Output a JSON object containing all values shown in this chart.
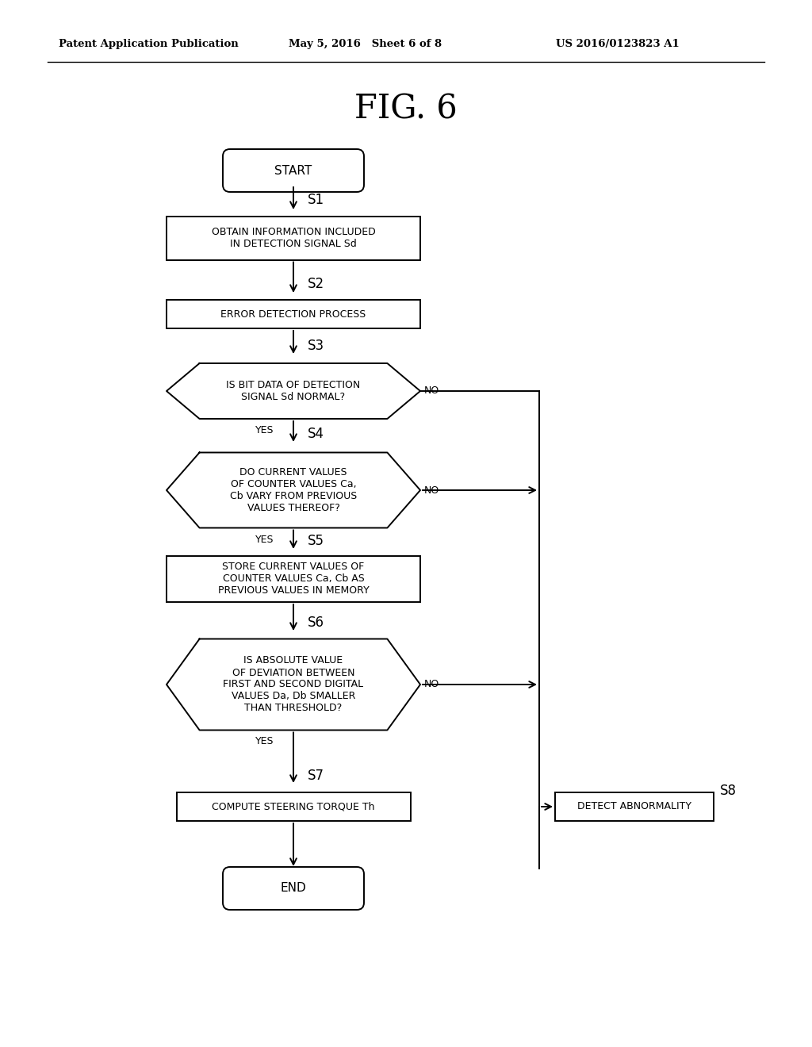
{
  "bg_color": "#ffffff",
  "header_left": "Patent Application Publication",
  "header_mid": "May 5, 2016   Sheet 6 of 8",
  "header_right": "US 2016/0123823 A1",
  "fig_title": "FIG. 6",
  "lw": 1.4,
  "start_text": "START",
  "end_text": "END",
  "s1_text": "OBTAIN INFORMATION INCLUDED\nIN DETECTION SIGNAL Sd",
  "s2_text": "ERROR DETECTION PROCESS",
  "s3_text": "IS BIT DATA OF DETECTION\nSIGNAL Sd NORMAL?",
  "s4_text": "DO CURRENT VALUES\nOF COUNTER VALUES Ca,\nCb VARY FROM PREVIOUS\nVALUES THEREOF?",
  "s5_text": "STORE CURRENT VALUES OF\nCOUNTER VALUES Ca, Cb AS\nPREVIOUS VALUES IN MEMORY",
  "s6_text": "IS ABSOLUTE VALUE\nOF DEVIATION BETWEEN\nFIRST AND SECOND DIGITAL\nVALUES Da, Db SMALLER\nTHAN THRESHOLD?",
  "s7_text": "COMPUTE STEERING TORQUE Th",
  "s8_text": "DETECT ABNORMALITY"
}
